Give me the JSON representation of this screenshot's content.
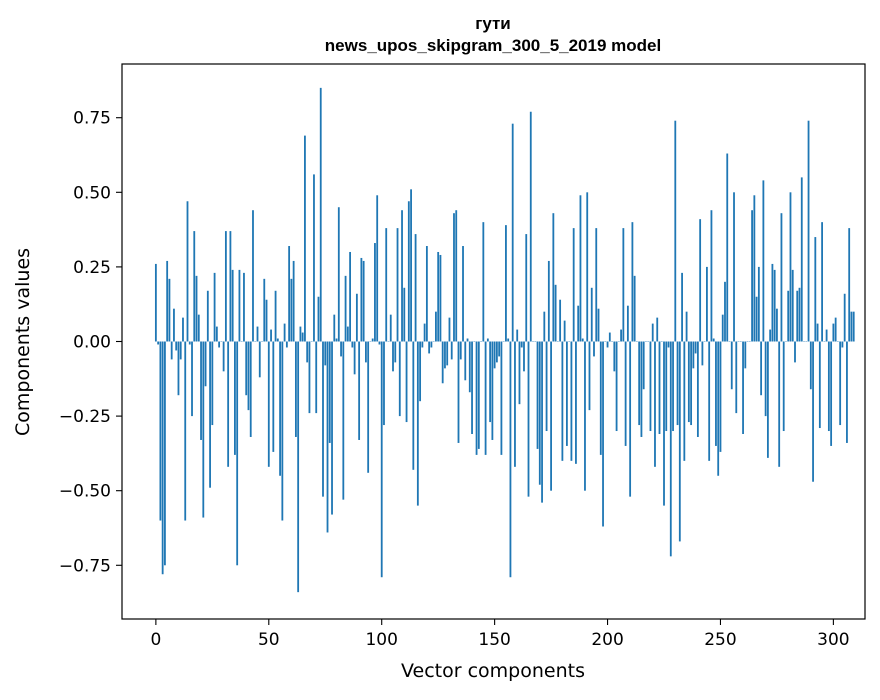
{
  "chart_data": {
    "type": "bar",
    "title_line1": "гути",
    "title_line2": "news_upos_skipgram_300_5_2019 model",
    "xlabel": "Vector components",
    "ylabel": "Components values",
    "xlim": [
      -15,
      314
    ],
    "ylim": [
      -0.93,
      0.93
    ],
    "xticks": [
      0,
      50,
      100,
      150,
      200,
      250,
      300
    ],
    "xtick_labels": [
      "0",
      "50",
      "100",
      "150",
      "200",
      "250",
      "300"
    ],
    "yticks": [
      -0.75,
      -0.5,
      -0.25,
      0.0,
      0.25,
      0.5,
      0.75
    ],
    "ytick_labels": [
      "−0.75",
      "−0.50",
      "−0.25",
      "0.00",
      "0.25",
      "0.50",
      "0.75"
    ],
    "grid": false,
    "bar_color": "#1f77b4",
    "x_start": 0,
    "values": [
      0.26,
      -0.01,
      -0.6,
      -0.78,
      -0.75,
      0.27,
      0.21,
      -0.06,
      0.11,
      -0.03,
      -0.18,
      -0.06,
      0.08,
      -0.6,
      0.47,
      -0.01,
      -0.25,
      0.37,
      0.22,
      0.09,
      -0.33,
      -0.59,
      -0.15,
      0.17,
      -0.49,
      -0.28,
      0.23,
      0.05,
      -0.02,
      0.0,
      -0.1,
      0.37,
      -0.42,
      0.37,
      0.24,
      -0.38,
      -0.75,
      0.24,
      0.0,
      0.23,
      -0.18,
      -0.23,
      -0.32,
      0.44,
      0.0,
      0.05,
      -0.12,
      0.0,
      0.21,
      0.14,
      -0.42,
      0.04,
      -0.37,
      0.17,
      0.01,
      -0.45,
      -0.6,
      0.06,
      -0.02,
      0.32,
      0.21,
      0.27,
      -0.32,
      -0.84,
      0.05,
      0.03,
      0.69,
      -0.07,
      -0.24,
      0.0,
      0.56,
      -0.24,
      0.15,
      0.85,
      -0.52,
      -0.08,
      -0.64,
      -0.34,
      -0.58,
      0.09,
      0.01,
      0.45,
      -0.05,
      -0.53,
      0.22,
      0.05,
      0.3,
      -0.02,
      -0.11,
      0.16,
      -0.33,
      0.28,
      0.27,
      -0.07,
      -0.44,
      0.0,
      0.01,
      0.33,
      0.49,
      -0.01,
      -0.79,
      -0.28,
      0.38,
      0.0,
      0.09,
      -0.1,
      -0.07,
      0.38,
      -0.25,
      0.44,
      0.18,
      -0.27,
      0.47,
      0.51,
      -0.43,
      0.36,
      -0.55,
      -0.2,
      -0.02,
      0.06,
      0.32,
      -0.04,
      -0.02,
      0.0,
      0.1,
      0.3,
      0.29,
      -0.14,
      -0.09,
      -0.08,
      0.08,
      -0.06,
      0.43,
      0.44,
      -0.34,
      -0.06,
      0.32,
      -0.13,
      0.01,
      -0.17,
      -0.31,
      0.0,
      -0.38,
      -0.36,
      0.0,
      0.4,
      -0.38,
      0.01,
      -0.27,
      -0.33,
      -0.09,
      -0.07,
      -0.05,
      -0.38,
      0.0,
      0.39,
      0.01,
      -0.79,
      0.73,
      -0.42,
      0.04,
      -0.21,
      -0.02,
      -0.1,
      0.36,
      -0.52,
      0.77,
      0.0,
      0.0,
      -0.36,
      -0.48,
      -0.54,
      0.1,
      -0.3,
      0.27,
      -0.5,
      0.43,
      0.19,
      0.0,
      0.14,
      -0.4,
      0.07,
      -0.35,
      0.0,
      -0.4,
      0.38,
      -0.41,
      0.12,
      0.49,
      0.01,
      -0.5,
      0.5,
      -0.23,
      0.18,
      -0.05,
      0.38,
      0.11,
      -0.38,
      -0.62,
      0.0,
      -0.02,
      0.03,
      0.0,
      -0.1,
      -0.3,
      0.0,
      0.04,
      0.38,
      -0.35,
      0.12,
      -0.52,
      0.4,
      0.22,
      0.0,
      -0.28,
      -0.32,
      -0.16,
      0.0,
      0.0,
      -0.3,
      0.06,
      -0.42,
      0.08,
      -0.31,
      0.0,
      -0.55,
      -0.3,
      -0.02,
      -0.72,
      -0.3,
      0.74,
      -0.28,
      -0.67,
      0.23,
      -0.4,
      0.1,
      -0.27,
      -0.28,
      -0.09,
      -0.04,
      -0.32,
      0.41,
      -0.08,
      0.0,
      0.25,
      -0.4,
      0.44,
      0.01,
      -0.35,
      -0.45,
      -0.37,
      0.09,
      0.2,
      0.63,
      0.0,
      -0.16,
      0.5,
      -0.24,
      0.0,
      0.0,
      -0.31,
      -0.09,
      0.0,
      0.0,
      0.44,
      0.49,
      0.15,
      0.25,
      -0.18,
      0.54,
      -0.25,
      -0.39,
      0.04,
      0.26,
      0.24,
      0.11,
      -0.42,
      0.43,
      -0.3,
      0.0,
      0.17,
      0.5,
      0.24,
      -0.07,
      0.17,
      0.18,
      0.55,
      0.0,
      0.0,
      0.74,
      -0.16,
      -0.47,
      0.35,
      0.06,
      -0.29,
      0.4,
      0.0,
      0.04,
      -0.3,
      -0.35,
      0.06,
      0.08,
      0.0,
      -0.28,
      -0.02,
      0.16,
      -0.34,
      0.38,
      0.1,
      0.1
    ]
  }
}
